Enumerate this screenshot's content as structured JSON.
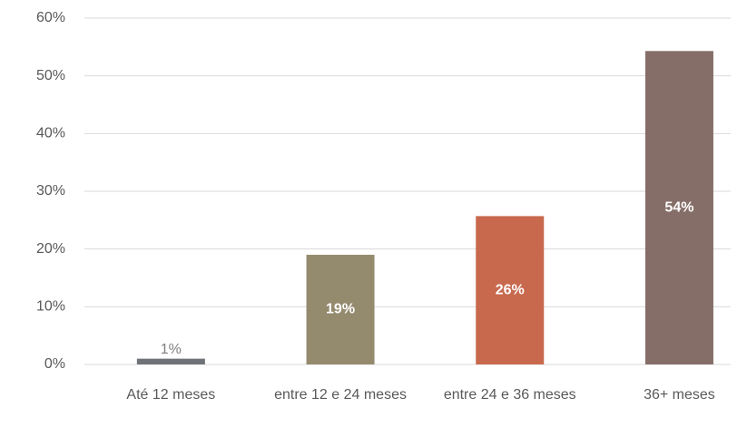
{
  "chart_data": {
    "type": "bar",
    "categories": [
      "Até 12 meses",
      "entre 12 e 24 meses",
      "entre 24 e 36 meses",
      "36+ meses"
    ],
    "values": [
      1,
      19,
      25.7,
      54.3
    ],
    "value_labels": [
      "1%",
      "19%",
      "26%",
      "54%"
    ],
    "colors": [
      "#6f7378",
      "#948a6e",
      "#c8694e",
      "#866e68"
    ],
    "ylim": [
      0,
      60
    ],
    "yticks": [
      {
        "value": 0,
        "label": "0%"
      },
      {
        "value": 10,
        "label": "10%"
      },
      {
        "value": 20,
        "label": "20%"
      },
      {
        "value": 30,
        "label": "30%"
      },
      {
        "value": 40,
        "label": "40%"
      },
      {
        "value": 50,
        "label": "50%"
      },
      {
        "value": 60,
        "label": "60%"
      }
    ],
    "grid": true
  }
}
